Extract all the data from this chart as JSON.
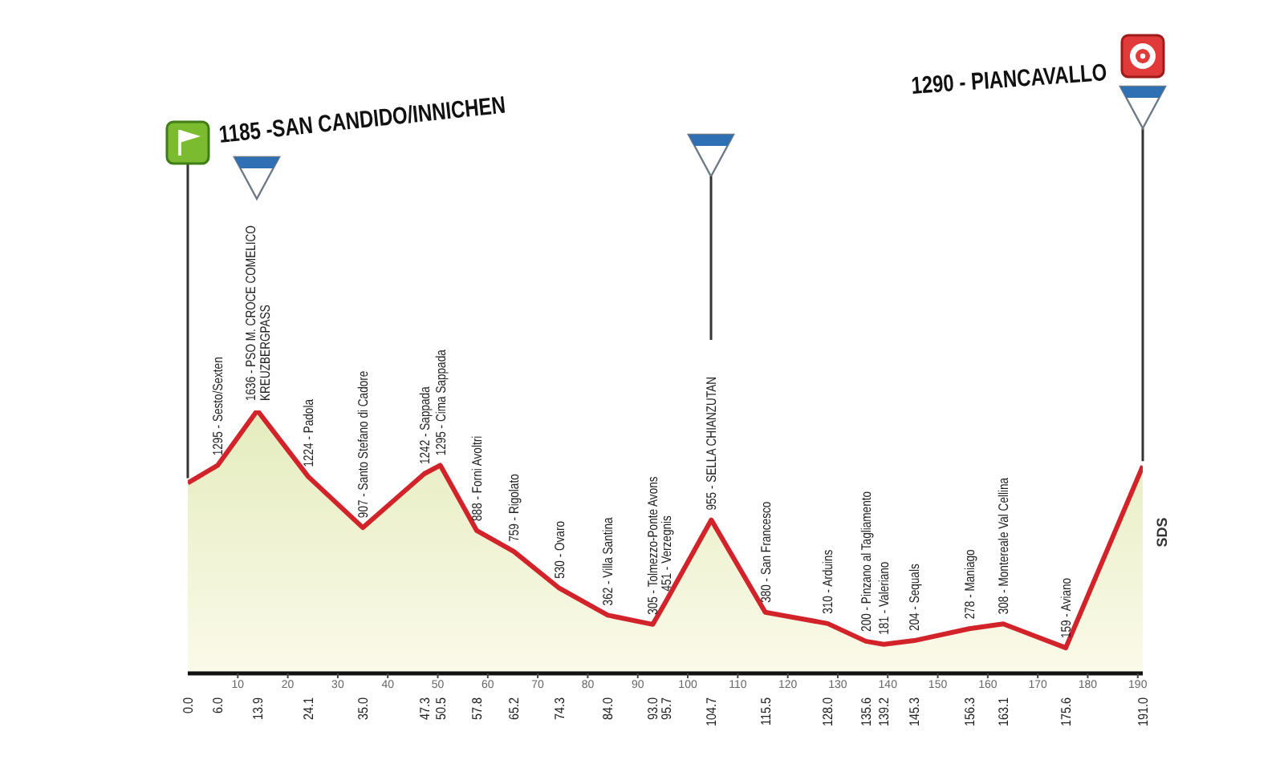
{
  "chart_data": {
    "type": "area",
    "x": [
      0,
      6,
      13.9,
      24.1,
      35,
      47.3,
      50.5,
      57.8,
      65.2,
      74.3,
      84,
      93,
      95.7,
      104.7,
      115.5,
      128,
      135.6,
      139.2,
      145.3,
      156.3,
      163.1,
      175.6,
      191
    ],
    "values": [
      1185,
      1295,
      1636,
      1224,
      907,
      1242,
      1295,
      888,
      759,
      530,
      362,
      305,
      451,
      955,
      380,
      310,
      200,
      181,
      204,
      278,
      308,
      159,
      1290
    ],
    "color": "#d2232a",
    "value_labels": [
      null,
      "1295 - Sesto/Sexten",
      "1636 - PSO M. CROCE COMELICO\nKREUZBERGPASS",
      "1224 - Padola",
      "907 - Santo Stefano di Cadore",
      "1242 - Sappada",
      "1295 - Cima Sappada",
      "888 - Forni Avoltri",
      "759 - Rigolato",
      "530 - Ovaro",
      "362 - Villa Santina",
      "305 - Tolmezzo-Ponte Avons",
      "451 - Verzegnis",
      "955 - SELLA CHIANZUTAN",
      "380 - San Francesco",
      "310 - Arduins",
      "200 - Pinzano al Tagliamento",
      "181 - Valeriano",
      "204 - Sequals",
      "278 - Maniago",
      "308 - Montereale Val Cellina",
      "159 - Aviano",
      null
    ],
    "xlim": [
      0,
      191
    ],
    "xticks": [
      10,
      20,
      30,
      40,
      50,
      60,
      70,
      80,
      90,
      100,
      110,
      120,
      130,
      140,
      150,
      160,
      170,
      180,
      190
    ],
    "x2lim": [
      0,
      191
    ],
    "x2ticks": [
      {
        "value": 0,
        "label": "0.0"
      },
      {
        "value": 6,
        "label": "6.0"
      },
      {
        "value": 13.9,
        "label": "13.9"
      },
      {
        "value": 24.1,
        "label": "24.1"
      },
      {
        "value": 35,
        "label": "35.0"
      },
      {
        "value": 47.3,
        "label": "47.3"
      },
      {
        "value": 50.5,
        "label": "50.5"
      },
      {
        "value": 57.8,
        "label": "57.8"
      },
      {
        "value": 65.2,
        "label": "65.2"
      },
      {
        "value": 74.3,
        "label": "74.3"
      },
      {
        "value": 84,
        "label": "84.0"
      },
      {
        "value": 93,
        "label": "93.0"
      },
      {
        "value": 95.7,
        "label": "95.7"
      },
      {
        "value": 104.7,
        "label": "104.7"
      },
      {
        "value": 115.5,
        "label": "115.5"
      },
      {
        "value": 128,
        "label": "128.0"
      },
      {
        "value": 135.6,
        "label": "135.6"
      },
      {
        "value": 139.2,
        "label": "139.2"
      },
      {
        "value": 145.3,
        "label": "145.3"
      },
      {
        "value": 156.3,
        "label": "156.3"
      },
      {
        "value": 163.1,
        "label": "163.1"
      },
      {
        "value": 175.6,
        "label": "175.6"
      },
      {
        "value": 191,
        "label": "191.0"
      }
    ],
    "annotations": [
      "1185 -SAN CANDIDO/INNICHEN",
      "1290 - PIANCAVALLO",
      "SDS"
    ]
  }
}
